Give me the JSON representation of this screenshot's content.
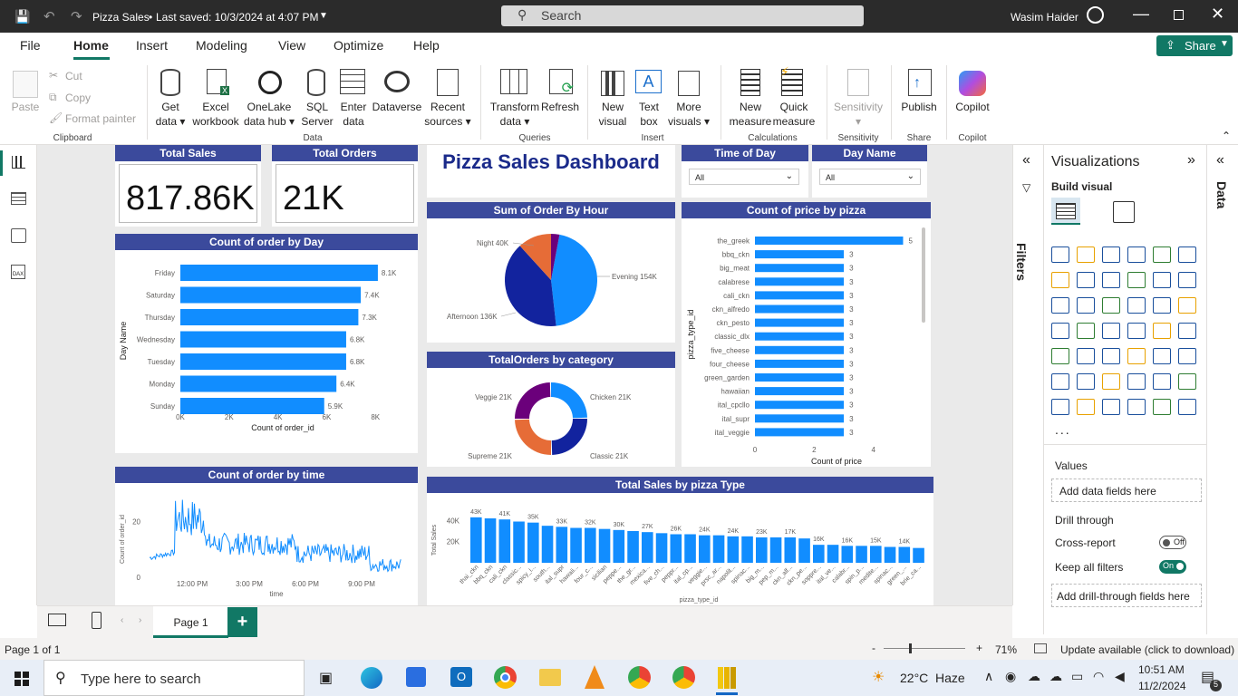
{
  "window": {
    "title": "Pizza Sales",
    "saved": "Last saved: 10/3/2024 at 4:07 PM",
    "search": "Search",
    "user": "Wasim Haider"
  },
  "menu": [
    "File",
    "Home",
    "Insert",
    "Modeling",
    "View",
    "Optimize",
    "Help"
  ],
  "share": "Share",
  "ribbon": {
    "paste": "Paste",
    "cut": "Cut",
    "copy": "Copy",
    "format_painter": "Format painter",
    "get_data": [
      "Get",
      "data"
    ],
    "excel": [
      "Excel",
      "workbook"
    ],
    "onelake": [
      "OneLake",
      "data hub"
    ],
    "sql": [
      "SQL",
      "Server"
    ],
    "enter": [
      "Enter",
      "data"
    ],
    "dataverse": "Dataverse",
    "recent": [
      "Recent",
      "sources"
    ],
    "transform": [
      "Transform",
      "data"
    ],
    "refresh": "Refresh",
    "new_visual": [
      "New",
      "visual"
    ],
    "text_box": [
      "Text",
      "box"
    ],
    "more_visuals": [
      "More",
      "visuals"
    ],
    "new_measure": [
      "New",
      "measure"
    ],
    "quick_measure": [
      "Quick",
      "measure"
    ],
    "sensitivity": "Sensitivity",
    "publish": "Publish",
    "copilot": "Copilot",
    "groups": {
      "clipboard": "Clipboard",
      "data": "Data",
      "queries": "Queries",
      "insert": "Insert",
      "calculations": "Calculations",
      "sensitivity": "Sensitivity",
      "share": "Share",
      "copilot": "Copilot"
    }
  },
  "dashboard": {
    "title": "Pizza Sales Dashboard",
    "kpi_sales": {
      "label": "Total Sales",
      "value": "817.86K"
    },
    "kpi_orders": {
      "label": "Total Orders",
      "value": "21K"
    },
    "slicer_time": {
      "label": "Time of Day",
      "value": "All"
    },
    "slicer_pizza": {
      "label": "Day Name",
      "value": "All"
    },
    "titles": {
      "by_day": "Count of order by Day",
      "by_hour": "Sum of Order By Hour",
      "by_price": "Count of price by pizza",
      "by_category": "TotalOrders by category",
      "by_time": "Count of order by time",
      "by_type": "Total Sales by pizza Type"
    }
  },
  "chart_data": [
    {
      "type": "bar",
      "title": "Count of order by Day",
      "categories": [
        "Friday",
        "Saturday",
        "Thursday",
        "Wednesday",
        "Tuesday",
        "Monday",
        "Sunday"
      ],
      "values": [
        8.1,
        7.4,
        7.3,
        6.8,
        6.8,
        6.4,
        5.9
      ],
      "labels": [
        "8.1K",
        "7.4K",
        "7.3K",
        "6.8K",
        "6.8K",
        "6.4K",
        "5.9K"
      ],
      "xlabel": "Count of order_id",
      "ylabel": "Day Name",
      "xticks": [
        "0K",
        "2K",
        "4K",
        "6K",
        "8K"
      ],
      "xlim": [
        0,
        8.4
      ]
    },
    {
      "type": "pie",
      "title": "Sum of Order By Hour",
      "categories": [
        "Evening",
        "Afternoon",
        "Night",
        ""
      ],
      "values": [
        154,
        136,
        40,
        10
      ],
      "labels": [
        "Evening 154K",
        "Afternoon 136K",
        "Night 40K"
      ],
      "colors": [
        "#118dff",
        "#12239e",
        "#e66c37",
        "#6b007b"
      ]
    },
    {
      "type": "bar",
      "title": "Count of price by pizza",
      "categories": [
        "the_greek",
        "bbq_ckn",
        "big_meat",
        "calabrese",
        "cali_ckn",
        "ckn_alfredo",
        "ckn_pesto",
        "classic_dlx",
        "five_cheese",
        "four_cheese",
        "green_garden",
        "hawaiian",
        "ital_cpcllo",
        "ital_supr",
        "ital_veggie"
      ],
      "values": [
        5,
        3,
        3,
        3,
        3,
        3,
        3,
        3,
        3,
        3,
        3,
        3,
        3,
        3,
        3
      ],
      "xlabel": "Count of price",
      "ylabel": "pizza_type_id",
      "xticks": [
        "0",
        "2",
        "4"
      ],
      "xlim": [
        0,
        5.2
      ]
    },
    {
      "type": "pie",
      "title": "TotalOrders by category",
      "categories": [
        "Chicken",
        "Classic",
        "Supreme",
        "Veggie"
      ],
      "values": [
        21,
        21,
        21,
        21
      ],
      "labels": [
        "Chicken 21K",
        "Classic 21K",
        "Supreme 21K",
        "Veggie 21K"
      ],
      "colors": [
        "#118dff",
        "#12239e",
        "#e66c37",
        "#6b007b"
      ]
    },
    {
      "type": "line",
      "title": "Count of order by time",
      "xlabel": "time",
      "ylabel": "Count of order_id",
      "yticks": [
        "0",
        "20"
      ],
      "xticks": [
        "12:00 PM",
        "3:00 PM",
        "6:00 PM",
        "9:00 PM"
      ],
      "ylim": [
        0,
        26
      ]
    },
    {
      "type": "bar",
      "title": "Total Sales by pizza Type",
      "categories": [
        "thai_ckn",
        "bbq_ckn",
        "cali_ckn",
        "classic...",
        "spicy_i...",
        "south...",
        "ital_supr",
        "hawaii...",
        "four_c...",
        "sicilian",
        "peppe...",
        "the_gr...",
        "mexica...",
        "five_ch...",
        "peppr...",
        "ital_cp...",
        "veggie...",
        "prsc_ar...",
        "napolit...",
        "spinac...",
        "big_m...",
        "pep_m...",
        "ckn_alf...",
        "ckn_pe...",
        "soppre...",
        "ital_ve...",
        "calabr...",
        "spin_p...",
        "medite...",
        "spinac...",
        "green_...",
        "brie_ca..."
      ],
      "values": [
        43,
        42,
        41,
        39,
        38,
        35,
        34,
        33,
        33,
        32,
        31,
        30,
        29,
        28,
        27,
        27,
        26,
        26,
        25,
        25,
        24,
        24,
        24,
        23,
        17,
        17,
        16,
        16,
        16,
        15,
        15,
        14
      ],
      "labels": [
        "43K",
        "41K",
        "35K",
        "33K",
        "32K",
        "30K",
        "27K",
        "26K",
        "24K",
        "24K",
        "23K",
        "17K",
        "16K",
        "16K",
        "15K",
        "14K"
      ],
      "xlabel": "pizza_type_id",
      "ylabel": "Total Sales",
      "yticks": [
        "20K",
        "40K"
      ],
      "ylim": [
        0,
        48
      ]
    }
  ],
  "pages": {
    "tab": "Page 1"
  },
  "status": {
    "page": "Page 1 of 1",
    "zoom": "71%",
    "update": "Update available (click to download)"
  },
  "viz_pane": {
    "title": "Visualizations",
    "build": "Build visual",
    "values": "Values",
    "add_data": "Add data fields here",
    "drill": "Drill through",
    "cross": "Cross-report",
    "cross_state": "Off",
    "keep": "Keep all filters",
    "keep_state": "On",
    "add_drill": "Add drill-through fields here",
    "filters": "Filters",
    "data": "Data",
    "ellipsis": "..."
  },
  "taskbar": {
    "search": "Type here to search",
    "weather": "22°C",
    "haze": "Haze",
    "time": "10:51 AM",
    "date": "11/2/2024",
    "notif": "5"
  }
}
